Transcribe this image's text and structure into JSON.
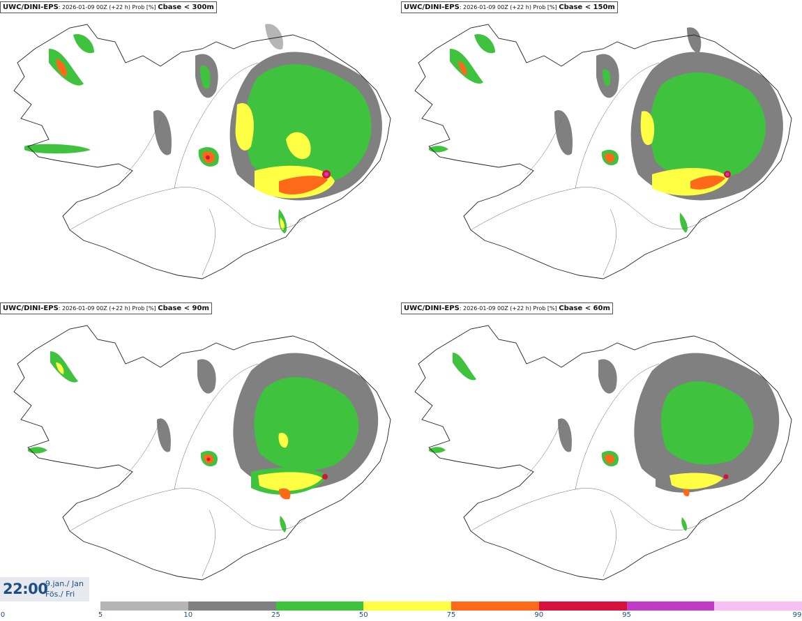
{
  "panels": [
    {
      "model": "UWC/DINI-EPS",
      "info": ": 2026-01-09 00Z (+22 h) Prob [%] ",
      "threshold": "Cbase < 300m"
    },
    {
      "model": "UWC/DINI-EPS",
      "info": ": 2026-01-09 00Z (+22 h) Prob [%] ",
      "threshold": "Cbase < 150m"
    },
    {
      "model": "UWC/DINI-EPS",
      "info": ": 2026-01-09 00Z (+22 h) Prob [%] ",
      "threshold": "Cbase < 90m"
    },
    {
      "model": "UWC/DINI-EPS",
      "info": ": 2026-01-09 00Z (+22 h) Prob [%] ",
      "threshold": "Cbase < 60m"
    }
  ],
  "time": {
    "clock": "22:00",
    "date_line1": "9.jan./ Jan",
    "date_line2": "Fös./ Fri"
  },
  "legend": {
    "ticks": [
      "0",
      "5",
      "10",
      "25",
      "50",
      "75",
      "90",
      "95",
      "99"
    ],
    "colors": [
      "#b5b5b5",
      "#808080",
      "#3fc33f",
      "#ffff44",
      "#ff6a1a",
      "#d8103c",
      "#c23bc6",
      "#f7bff2"
    ],
    "classes": [
      "5-10",
      "10-25",
      "25-50",
      "50-75",
      "75-90",
      "90-95",
      "95-99",
      ">99"
    ]
  },
  "map": {
    "coast_color": "#222222",
    "road_color": "#666666",
    "background": "#ffffff"
  }
}
